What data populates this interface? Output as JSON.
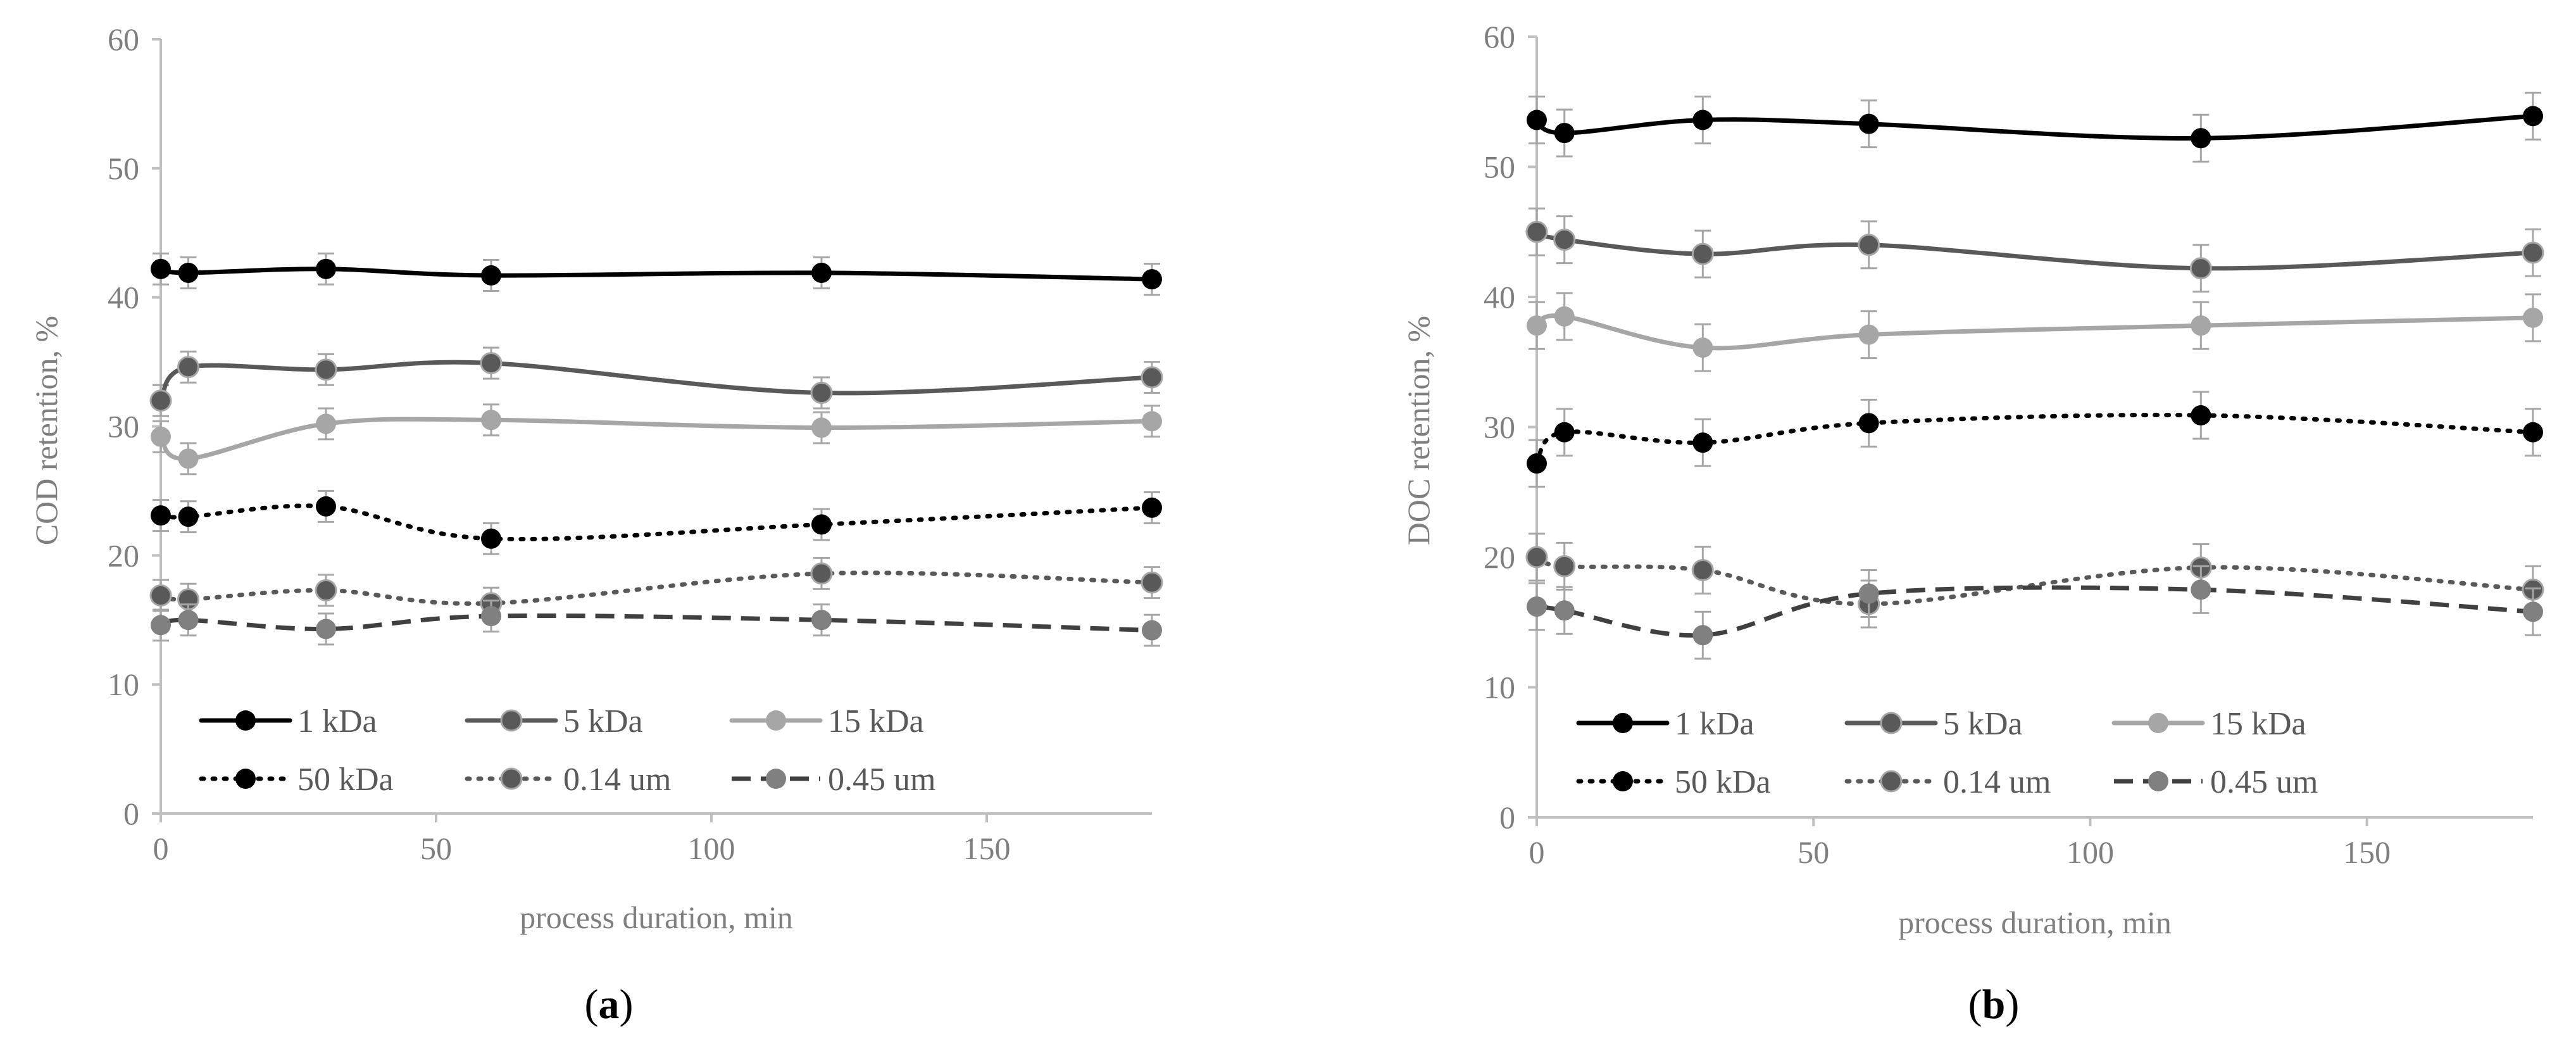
{
  "chart_data": [
    {
      "type": "line",
      "panel": "a",
      "caption": {
        "open": "(",
        "letter": "a",
        "close": ")"
      },
      "xlabel": "process duration, min",
      "ylabel": "COD retention, %",
      "xlim": [
        0,
        180
      ],
      "ylim": [
        0,
        60
      ],
      "xticks": [
        0,
        50,
        100,
        150
      ],
      "yticks": [
        0,
        10,
        20,
        30,
        40,
        50,
        60
      ],
      "grid": false,
      "legend_position": "bottom-left",
      "x": [
        0,
        5,
        30,
        60,
        120,
        180
      ],
      "series": [
        {
          "name": "1 kDa",
          "values": [
            42.2,
            41.9,
            42.2,
            41.7,
            41.9,
            41.4
          ],
          "error": [
            1.2,
            1.2,
            1.2,
            1.2,
            1.2,
            1.2
          ],
          "color": "#000000",
          "dash": "solid",
          "marker": "#000000"
        },
        {
          "name": "5 kDa",
          "values": [
            32.0,
            34.6,
            34.4,
            34.9,
            32.6,
            33.8
          ],
          "error": [
            1.2,
            1.2,
            1.2,
            1.2,
            1.2,
            1.2
          ],
          "color": "#595959",
          "dash": "solid",
          "marker": "#595959"
        },
        {
          "name": "15 kDa",
          "values": [
            29.2,
            27.5,
            30.2,
            30.5,
            29.9,
            30.4
          ],
          "error": [
            1.2,
            1.2,
            1.2,
            1.2,
            1.2,
            1.2
          ],
          "color": "#a6a6a6",
          "dash": "solid",
          "marker": "#a6a6a6"
        },
        {
          "name": "50 kDa",
          "values": [
            23.1,
            23.0,
            23.8,
            21.3,
            22.4,
            23.7
          ],
          "error": [
            1.2,
            1.2,
            1.2,
            1.2,
            1.2,
            1.2
          ],
          "color": "#000000",
          "dash": "dot",
          "marker": "#000000"
        },
        {
          "name": "0.14 um",
          "values": [
            16.9,
            16.6,
            17.3,
            16.3,
            18.6,
            17.9
          ],
          "error": [
            1.2,
            1.2,
            1.2,
            1.2,
            1.2,
            1.2
          ],
          "color": "#595959",
          "dash": "dot",
          "marker": "#595959"
        },
        {
          "name": "0.45 um",
          "values": [
            14.6,
            15.0,
            14.3,
            15.3,
            15.0,
            14.2
          ],
          "error": [
            1.2,
            1.2,
            1.2,
            1.2,
            1.2,
            1.2
          ],
          "color": "#404040",
          "dash": "dash",
          "marker": "#808080"
        }
      ]
    },
    {
      "type": "line",
      "panel": "b",
      "caption": {
        "open": "(",
        "letter": "b",
        "close": ")"
      },
      "xlabel": "process duration, min",
      "ylabel": "DOC retention, %",
      "xlim": [
        0,
        180
      ],
      "ylim": [
        0,
        60
      ],
      "xticks": [
        0,
        50,
        100,
        150
      ],
      "yticks": [
        0,
        10,
        20,
        30,
        40,
        50,
        60
      ],
      "grid": false,
      "legend_position": "bottom-left",
      "x": [
        0,
        5,
        30,
        60,
        120,
        180
      ],
      "series": [
        {
          "name": "1 kDa",
          "values": [
            53.6,
            52.6,
            53.6,
            53.3,
            52.2,
            53.9
          ],
          "error": [
            1.8,
            1.8,
            1.8,
            1.8,
            1.8,
            1.8
          ],
          "color": "#000000",
          "dash": "solid",
          "marker": "#000000"
        },
        {
          "name": "5 kDa",
          "values": [
            45.0,
            44.4,
            43.3,
            44.0,
            42.2,
            43.4
          ],
          "error": [
            1.8,
            1.8,
            1.8,
            1.8,
            1.8,
            1.8
          ],
          "color": "#595959",
          "dash": "solid",
          "marker": "#595959"
        },
        {
          "name": "15 kDa",
          "values": [
            37.8,
            38.5,
            36.1,
            37.1,
            37.8,
            38.4
          ],
          "error": [
            1.8,
            1.8,
            1.8,
            1.8,
            1.8,
            1.8
          ],
          "color": "#a6a6a6",
          "dash": "solid",
          "marker": "#a6a6a6"
        },
        {
          "name": "50 kDa",
          "values": [
            27.2,
            29.6,
            28.8,
            30.3,
            30.9,
            29.6
          ],
          "error": [
            1.8,
            1.8,
            1.8,
            1.8,
            1.8,
            1.8
          ],
          "color": "#000000",
          "dash": "dot",
          "marker": "#000000"
        },
        {
          "name": "0.14 um",
          "values": [
            20.0,
            19.3,
            19.0,
            16.4,
            19.2,
            17.5
          ],
          "error": [
            1.8,
            1.8,
            1.8,
            1.8,
            1.8,
            1.8
          ],
          "color": "#595959",
          "dash": "dot",
          "marker": "#595959"
        },
        {
          "name": "0.45 um",
          "values": [
            16.2,
            15.9,
            14.0,
            17.2,
            17.5,
            15.8
          ],
          "error": [
            1.8,
            1.8,
            1.8,
            1.8,
            1.8,
            1.8
          ],
          "color": "#404040",
          "dash": "dash",
          "marker": "#808080"
        }
      ]
    }
  ]
}
